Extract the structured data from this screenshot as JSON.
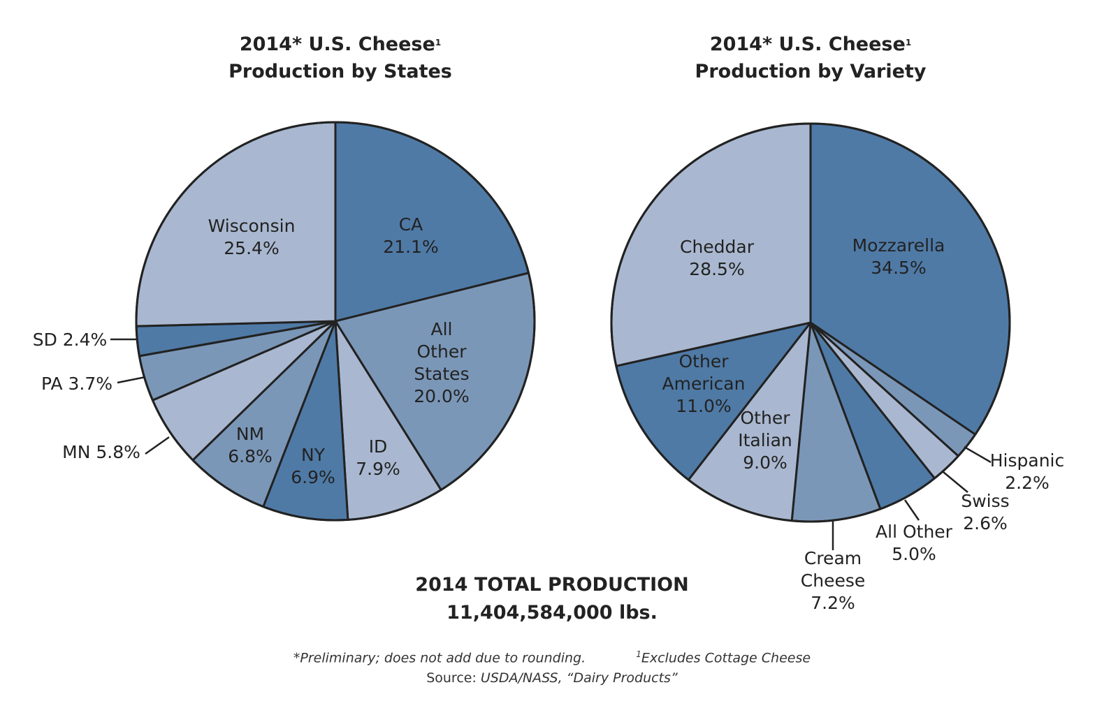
{
  "chart_data": [
    {
      "type": "pie",
      "title": "2014* U.S. Cheese",
      "title_footnote_mark": "1",
      "subtitle": "Production by States",
      "slices": [
        {
          "label": "CA",
          "value": 21.1,
          "text": "21.1%",
          "color": "#4f7aa6"
        },
        {
          "label": "All Other States",
          "value": 20.0,
          "text": "20.0%",
          "color": "#7b97b8"
        },
        {
          "label": "ID",
          "value": 7.9,
          "text": "7.9%",
          "color": "#a9b8d0"
        },
        {
          "label": "NY",
          "value": 6.9,
          "text": "6.9%",
          "color": "#4f7aa6"
        },
        {
          "label": "NM",
          "value": 6.8,
          "text": "6.8%",
          "color": "#7b97b8"
        },
        {
          "label": "MN",
          "value": 5.8,
          "text": "5.8%",
          "color": "#a9b8d0"
        },
        {
          "label": "PA",
          "value": 3.7,
          "text": "3.7%",
          "color": "#7b97b8"
        },
        {
          "label": "SD",
          "value": 2.4,
          "text": "2.4%",
          "color": "#4f7aa6"
        },
        {
          "label": "Wisconsin",
          "value": 25.4,
          "text": "25.4%",
          "color": "#a9b8d0"
        }
      ]
    },
    {
      "type": "pie",
      "title": "2014* U.S. Cheese",
      "title_footnote_mark": "1",
      "subtitle": "Production by Variety",
      "slices": [
        {
          "label": "Mozzarella",
          "value": 34.5,
          "text": "34.5%",
          "color": "#4f7aa6"
        },
        {
          "label": "Hispanic",
          "value": 2.2,
          "text": "2.2%",
          "color": "#7b97b8"
        },
        {
          "label": "Swiss",
          "value": 2.6,
          "text": "2.6%",
          "color": "#a9b8d0"
        },
        {
          "label": "All Other",
          "value": 5.0,
          "text": "5.0%",
          "color": "#4f7aa6"
        },
        {
          "label": "Cream Cheese",
          "value": 7.2,
          "text": "7.2%",
          "color": "#7b97b8"
        },
        {
          "label": "Other Italian",
          "value": 9.0,
          "text": "9.0%",
          "color": "#a9b8d0"
        },
        {
          "label": "Other American",
          "value": 11.0,
          "text": "11.0%",
          "color": "#4f7aa6"
        },
        {
          "label": "Cheddar",
          "value": 28.5,
          "text": "28.5%",
          "color": "#a9b8d0"
        }
      ]
    }
  ],
  "total": {
    "label": "2014 TOTAL PRODUCTION",
    "value": "11,404,584,000 lbs."
  },
  "footnotes": {
    "preliminary": "*Preliminary; does not add due to rounding.",
    "excludes_mark": "1",
    "excludes": "Excludes Cottage Cheese",
    "source_label": "Source:",
    "source": "USDA/NASS, “Dairy Products”"
  }
}
